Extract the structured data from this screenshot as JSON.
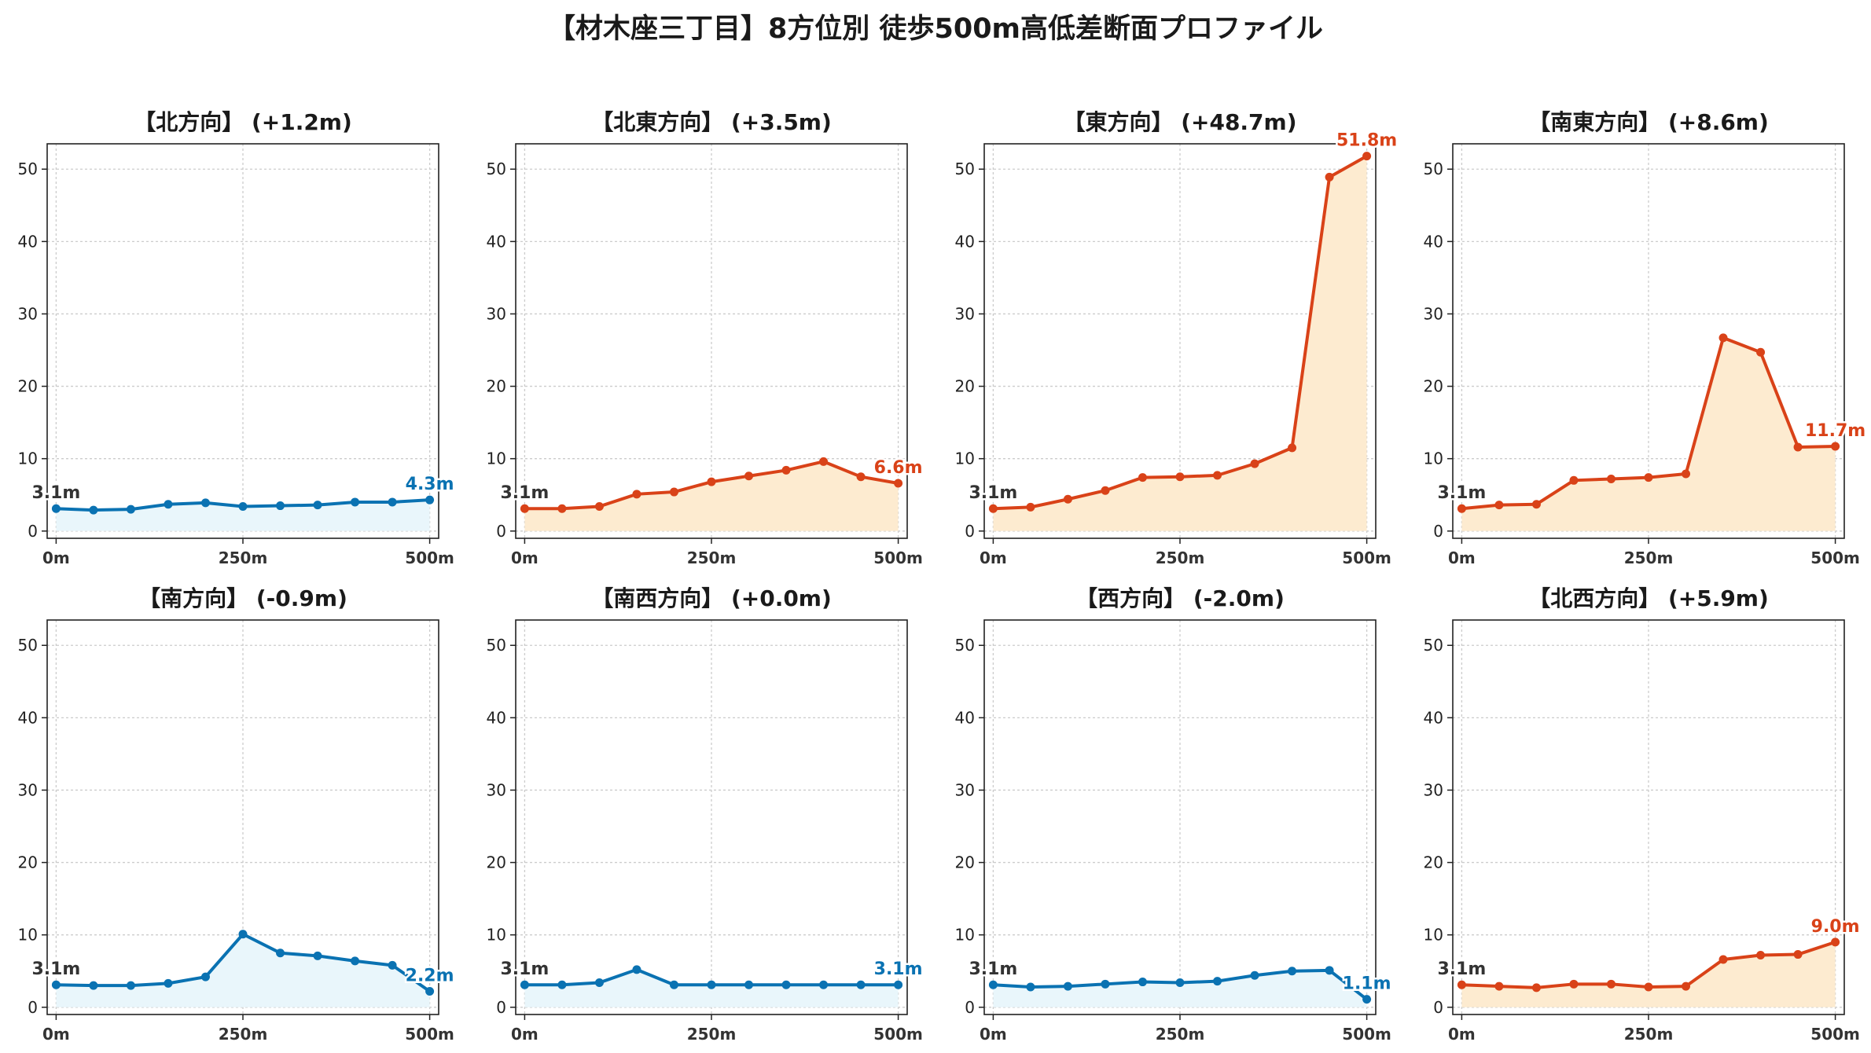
{
  "title": "【材木座三丁目】8方位別 徒歩500m高低差断面プロファイル",
  "colors": {
    "up_line": "#d94218",
    "up_fill": "#fdebd0",
    "down_line": "#0a72b2",
    "down_fill": "#e9f6fb",
    "start_label": "#333333"
  },
  "chart_data": [
    {
      "type": "area",
      "title": "【北方向】 (+1.2m)",
      "x": [
        0,
        50,
        100,
        150,
        200,
        250,
        300,
        350,
        400,
        450,
        500
      ],
      "values": [
        3.1,
        2.9,
        3.0,
        3.7,
        3.9,
        3.4,
        3.5,
        3.6,
        4.0,
        4.0,
        4.3
      ],
      "trend": "down",
      "start_label": "3.1m",
      "end_label": "4.3m",
      "xticks": [
        "0m",
        "250m",
        "500m"
      ],
      "yticks": [
        0,
        10,
        20,
        30,
        40,
        50
      ],
      "ylim": [
        -1,
        53.5
      ],
      "xlim": [
        -12,
        512
      ],
      "grid": true
    },
    {
      "type": "area",
      "title": "【北東方向】 (+3.5m)",
      "x": [
        0,
        50,
        100,
        150,
        200,
        250,
        300,
        350,
        400,
        450,
        500
      ],
      "values": [
        3.1,
        3.1,
        3.4,
        5.1,
        5.4,
        6.8,
        7.6,
        8.4,
        9.6,
        7.5,
        6.6
      ],
      "trend": "up",
      "start_label": "3.1m",
      "end_label": "6.6m",
      "xticks": [
        "0m",
        "250m",
        "500m"
      ],
      "yticks": [
        0,
        10,
        20,
        30,
        40,
        50
      ],
      "ylim": [
        -1,
        53.5
      ],
      "xlim": [
        -12,
        512
      ],
      "grid": true
    },
    {
      "type": "area",
      "title": "【東方向】 (+48.7m)",
      "x": [
        0,
        50,
        100,
        150,
        200,
        250,
        300,
        350,
        400,
        450,
        500
      ],
      "values": [
        3.1,
        3.3,
        4.4,
        5.6,
        7.4,
        7.5,
        7.7,
        9.3,
        11.5,
        48.9,
        51.8
      ],
      "trend": "up",
      "start_label": "3.1m",
      "end_label": "51.8m",
      "xticks": [
        "0m",
        "250m",
        "500m"
      ],
      "yticks": [
        0,
        10,
        20,
        30,
        40,
        50
      ],
      "ylim": [
        -1,
        53.5
      ],
      "xlim": [
        -12,
        512
      ],
      "grid": true
    },
    {
      "type": "area",
      "title": "【南東方向】 (+8.6m)",
      "x": [
        0,
        50,
        100,
        150,
        200,
        250,
        300,
        350,
        400,
        450,
        500
      ],
      "values": [
        3.1,
        3.6,
        3.7,
        7.0,
        7.2,
        7.4,
        7.9,
        26.7,
        24.7,
        11.6,
        11.7
      ],
      "trend": "up",
      "start_label": "3.1m",
      "end_label": "11.7m",
      "xticks": [
        "0m",
        "250m",
        "500m"
      ],
      "yticks": [
        0,
        10,
        20,
        30,
        40,
        50
      ],
      "ylim": [
        -1,
        53.5
      ],
      "xlim": [
        -12,
        512
      ],
      "grid": true
    },
    {
      "type": "area",
      "title": "【南方向】 (-0.9m)",
      "x": [
        0,
        50,
        100,
        150,
        200,
        250,
        300,
        350,
        400,
        450,
        500
      ],
      "values": [
        3.1,
        3.0,
        3.0,
        3.3,
        4.2,
        10.1,
        7.5,
        7.1,
        6.4,
        5.8,
        2.2
      ],
      "trend": "down",
      "start_label": "3.1m",
      "end_label": "2.2m",
      "xticks": [
        "0m",
        "250m",
        "500m"
      ],
      "yticks": [
        0,
        10,
        20,
        30,
        40,
        50
      ],
      "ylim": [
        -1,
        53.5
      ],
      "xlim": [
        -12,
        512
      ],
      "grid": true
    },
    {
      "type": "area",
      "title": "【南西方向】 (+0.0m)",
      "x": [
        0,
        50,
        100,
        150,
        200,
        250,
        300,
        350,
        400,
        450,
        500
      ],
      "values": [
        3.1,
        3.1,
        3.4,
        5.2,
        3.1,
        3.1,
        3.1,
        3.1,
        3.1,
        3.1,
        3.1
      ],
      "trend": "down",
      "start_label": "3.1m",
      "end_label": "3.1m",
      "xticks": [
        "0m",
        "250m",
        "500m"
      ],
      "yticks": [
        0,
        10,
        20,
        30,
        40,
        50
      ],
      "ylim": [
        -1,
        53.5
      ],
      "xlim": [
        -12,
        512
      ],
      "grid": true
    },
    {
      "type": "area",
      "title": "【西方向】 (-2.0m)",
      "x": [
        0,
        50,
        100,
        150,
        200,
        250,
        300,
        350,
        400,
        450,
        500
      ],
      "values": [
        3.1,
        2.8,
        2.9,
        3.2,
        3.5,
        3.4,
        3.6,
        4.4,
        5.0,
        5.1,
        1.1
      ],
      "trend": "down",
      "start_label": "3.1m",
      "end_label": "1.1m",
      "xticks": [
        "0m",
        "250m",
        "500m"
      ],
      "yticks": [
        0,
        10,
        20,
        30,
        40,
        50
      ],
      "ylim": [
        -1,
        53.5
      ],
      "xlim": [
        -12,
        512
      ],
      "grid": true
    },
    {
      "type": "area",
      "title": "【北西方向】 (+5.9m)",
      "x": [
        0,
        50,
        100,
        150,
        200,
        250,
        300,
        350,
        400,
        450,
        500
      ],
      "values": [
        3.1,
        2.9,
        2.7,
        3.2,
        3.2,
        2.8,
        2.9,
        6.6,
        7.2,
        7.3,
        9.0
      ],
      "trend": "up",
      "start_label": "3.1m",
      "end_label": "9.0m",
      "xticks": [
        "0m",
        "250m",
        "500m"
      ],
      "yticks": [
        0,
        10,
        20,
        30,
        40,
        50
      ],
      "ylim": [
        -1,
        53.5
      ],
      "xlim": [
        -12,
        512
      ],
      "grid": true
    }
  ]
}
